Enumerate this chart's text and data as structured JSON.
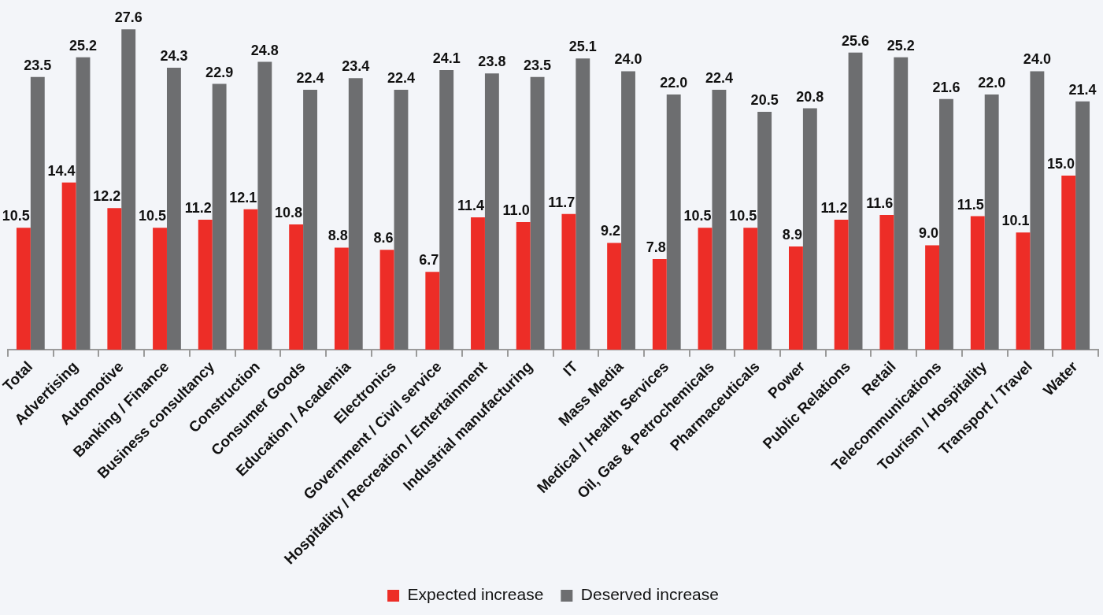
{
  "chart_data": {
    "type": "bar",
    "categories": [
      "Total",
      "Advertising",
      "Automotive",
      "Banking / Finance",
      "Business consultancy",
      "Construction",
      "Consumer Goods",
      "Education / Academia",
      "Electronics",
      "Government / Civil service",
      "Hospitality / Recreation / Entertainment",
      "Industrial manufacturing",
      "IT",
      "Mass Media",
      "Medical / Health Services",
      "Oil, Gas & Petrochemicals",
      "Pharmaceuticals",
      "Power",
      "Public Relations",
      "Retail",
      "Telecommunications",
      "Tourism / Hospitality",
      "Transport / Travel",
      "Water"
    ],
    "series": [
      {
        "name": "Expected increase",
        "color": "#ed2d27",
        "values": [
          10.5,
          14.4,
          12.2,
          10.5,
          11.2,
          12.1,
          10.8,
          8.8,
          8.6,
          6.7,
          11.4,
          11.0,
          11.7,
          9.2,
          7.8,
          10.5,
          10.5,
          8.9,
          11.2,
          11.6,
          9.0,
          11.5,
          10.1,
          15.0
        ],
        "value_labels": [
          "10.5",
          "14.4",
          "12.2",
          "10.5",
          "11.2",
          "12.1",
          "10.8",
          "8.8",
          "8.6",
          "6.7",
          "11.4",
          "11.0",
          "11.7",
          "9.2",
          "7.8",
          "10.5",
          "10.5",
          "8.9",
          "11.2",
          "11.6",
          "9.0",
          "11.5",
          "10.1",
          "15.0"
        ]
      },
      {
        "name": "Deserved increase",
        "color": "#6d6e70",
        "values": [
          23.5,
          25.2,
          27.6,
          24.3,
          22.9,
          24.8,
          22.4,
          23.4,
          22.4,
          24.1,
          23.8,
          23.5,
          25.1,
          24.0,
          22.0,
          22.4,
          20.5,
          20.8,
          25.6,
          25.2,
          21.6,
          22.0,
          24.0,
          21.4
        ],
        "value_labels": [
          "23.5",
          "25.2",
          "27.6",
          "24.3",
          "22.9",
          "24.8",
          "22.4",
          "23.4",
          "22.4",
          "24.1",
          "23.8",
          "23.5",
          "25.1",
          "24.0",
          "22.0",
          "22.4",
          "20.5",
          "20.8",
          "25.6",
          "25.2",
          "21.6",
          "22.0",
          "24.0",
          "21.4"
        ]
      }
    ],
    "legend": "bottom",
    "tick_labels": "x"
  }
}
